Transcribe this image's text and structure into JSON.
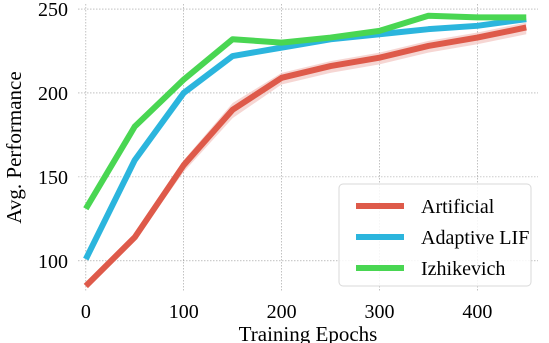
{
  "chart_data": {
    "type": "line",
    "title": "",
    "xlabel": "Training Epochs",
    "ylabel": "Avg. Performance",
    "xlim": [
      -8,
      462
    ],
    "ylim": [
      82,
      253
    ],
    "x_ticks": [
      0,
      100,
      200,
      300,
      400
    ],
    "y_ticks": [
      100,
      150,
      200,
      250
    ],
    "grid": true,
    "legend_position": "lower-right",
    "x": [
      0,
      50,
      100,
      150,
      200,
      250,
      300,
      350,
      400,
      450
    ],
    "series": [
      {
        "name": "Artificial",
        "color": "#de5a4a",
        "band_color": "#f2c4c0",
        "values": [
          85,
          114,
          157,
          190,
          209,
          216,
          221,
          228,
          233,
          239
        ],
        "lower": [
          84,
          112,
          153,
          185,
          205,
          212,
          217,
          224,
          229,
          235
        ],
        "upper": [
          86,
          116,
          160,
          194,
          212,
          219,
          224,
          231,
          236,
          242
        ]
      },
      {
        "name": "Adaptive LIF",
        "color": "#2bb5dd",
        "values": [
          101,
          160,
          200,
          222,
          227,
          232,
          235,
          238,
          240,
          244
        ]
      },
      {
        "name": "Izhikevich",
        "color": "#49d652",
        "values": [
          131,
          180,
          208,
          232,
          230,
          233,
          237,
          246,
          245,
          245
        ]
      }
    ]
  }
}
